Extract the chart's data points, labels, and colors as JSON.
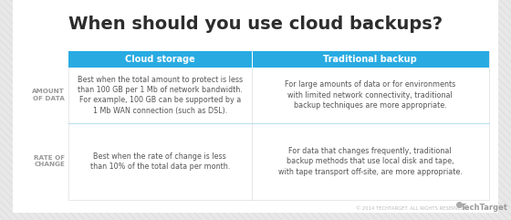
{
  "title": "When should you use cloud backups?",
  "title_fontsize": 14,
  "title_fontweight": "bold",
  "title_color": "#2d2d2d",
  "bg_color": "#e8e8e8",
  "card_color": "#ffffff",
  "table_bg": "#ffffff",
  "header_bg": "#29abe2",
  "header_text_color": "#ffffff",
  "header_fontsize": 7,
  "header_col1": "Cloud storage",
  "header_col2": "Traditional backup",
  "row_label_color": "#999999",
  "row_label_fontsize": 5.2,
  "cell_fontsize": 5.8,
  "cell_text_color": "#555555",
  "divider_color": "#b8dff0",
  "border_color": "#dddddd",
  "row_labels": [
    "AMOUNT\nOF DATA",
    "RATE OF\nCHANGE"
  ],
  "col1_rows": [
    "Best when the total amount to protect is less\nthan 100 GB per 1 Mb of network bandwidth.\nFor example, 100 GB can be supported by a\n1 Mb WAN connection (such as DSL).",
    "Best when the rate of change is less\nthan 10% of the total data per month."
  ],
  "col2_rows": [
    "For large amounts of data or for environments\nwith limited network connectivity, traditional\nbackup techniques are more appropriate.",
    "For data that changes frequently, traditional\nbackup methods that use local disk and tape,\nwith tape transport off-site, are more appropriate."
  ],
  "footer_text": "© 2014 TECHTARGET. ALL RIGHTS RESERVED.",
  "footer_logo": "TechTarget",
  "footer_fontsize": 3.8,
  "footer_logo_fontsize": 6.0
}
